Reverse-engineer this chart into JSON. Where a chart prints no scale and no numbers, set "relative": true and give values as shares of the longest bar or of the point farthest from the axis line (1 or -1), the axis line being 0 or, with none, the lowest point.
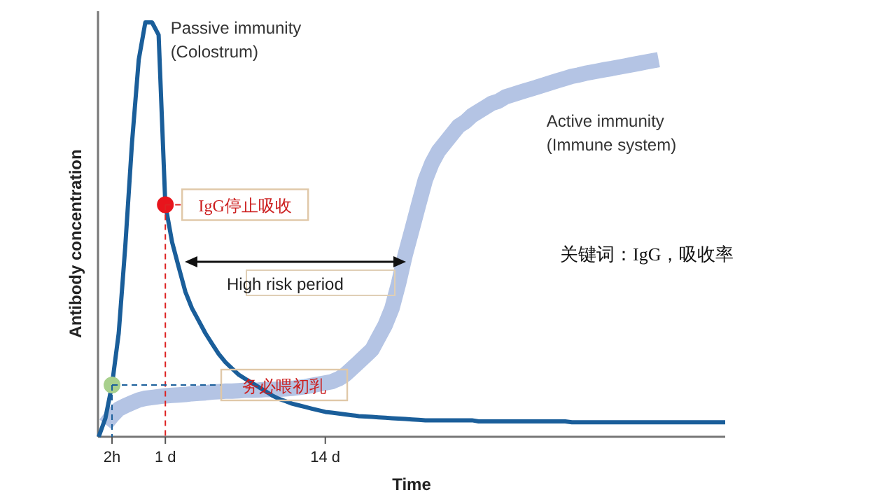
{
  "chart_data": {
    "type": "line",
    "relative": true,
    "xlabel": "Time",
    "ylabel": "Antibody concentration",
    "categories": [
      null,
      null,
      "2h",
      null,
      null,
      null,
      null,
      null,
      null,
      null,
      "1 d",
      null,
      null,
      null,
      null,
      null,
      null,
      null,
      null,
      null,
      null,
      null,
      null,
      null,
      null,
      null,
      null,
      null,
      null,
      null,
      null,
      null,
      null,
      null,
      "14 d",
      null,
      null,
      null,
      null,
      null,
      null,
      null,
      null,
      null,
      null,
      null,
      null,
      null,
      null,
      null,
      null,
      null,
      null,
      null,
      null,
      null,
      null,
      null,
      null,
      null,
      null,
      null,
      null,
      null,
      null,
      null,
      null,
      null,
      null,
      null,
      null,
      null,
      null,
      null,
      null,
      null,
      null,
      null,
      null,
      null,
      null,
      null,
      null,
      null,
      null,
      null,
      null,
      null,
      null,
      null,
      null,
      null,
      null,
      null,
      null
    ],
    "tick_labels": "x",
    "grid": false,
    "legend": false,
    "series": [
      {
        "name": "Passive immunity\n(Colostrum)",
        "type": "line",
        "color": "#1a5e9a",
        "values": [
          0,
          0.045,
          0.125,
          0.25,
          0.46,
          0.71,
          0.91,
          1.0,
          1.0,
          0.97,
          0.56,
          0.47,
          0.41,
          0.35,
          0.31,
          0.28,
          0.25,
          0.225,
          0.2,
          0.18,
          0.165,
          0.15,
          0.14,
          0.13,
          0.12,
          0.11,
          0.1,
          0.092,
          0.086,
          0.08,
          0.076,
          0.072,
          0.068,
          0.064,
          0.06,
          0.058,
          0.056,
          0.054,
          0.052,
          0.05,
          0.049,
          0.048,
          0.047,
          0.046,
          0.045,
          0.044,
          0.043,
          0.042,
          0.041,
          0.04,
          0.04,
          0.04,
          0.04,
          0.04,
          0.04,
          0.04,
          0.04,
          0.037,
          0.037,
          0.037,
          0.037,
          0.037,
          0.037,
          0.037,
          0.037,
          0.037,
          0.037,
          0.037,
          0.037,
          0.037,
          0.037,
          0.035,
          0.035,
          0.035,
          0.035,
          0.035,
          0.035,
          0.035,
          0.035,
          0.035,
          0.035,
          0.035,
          0.035,
          0.035,
          0.035,
          0.035,
          0.035,
          0.035,
          0.035,
          0.035,
          0.035,
          0.035,
          0.035,
          0.035,
          0.035
        ]
      },
      {
        "name": "Active immunity\n(Immune system)",
        "type": "line",
        "color": "#b4c4e4",
        "values": [
          null,
          0.03,
          0.05,
          0.067,
          0.075,
          0.082,
          0.089,
          0.093,
          0.095,
          0.097,
          0.099,
          0.1,
          0.101,
          0.102,
          0.104,
          0.105,
          0.106,
          0.108,
          0.109,
          0.11,
          0.11,
          0.111,
          0.112,
          0.112,
          0.113,
          0.114,
          0.114,
          0.115,
          0.116,
          0.117,
          0.119,
          0.121,
          0.124,
          0.127,
          0.13,
          0.133,
          0.14,
          0.15,
          0.165,
          0.18,
          0.195,
          0.21,
          0.24,
          0.27,
          0.31,
          0.37,
          0.44,
          0.5,
          0.56,
          0.62,
          0.66,
          0.69,
          0.71,
          0.73,
          0.75,
          0.76,
          0.775,
          0.785,
          0.795,
          0.805,
          0.81,
          0.82,
          0.825,
          0.83,
          0.835,
          0.84,
          0.845,
          0.85,
          0.855,
          0.86,
          0.865,
          0.87,
          0.873,
          0.877,
          0.88,
          0.883,
          0.886,
          0.889,
          0.892,
          0.895,
          0.898,
          0.901,
          0.904,
          0.907,
          0.91,
          null,
          null,
          null,
          null,
          null,
          null,
          null,
          null,
          null,
          null
        ]
      },
      {
        "type": "scatter",
        "marker": "circle",
        "color": "#e8141c",
        "x": [
          "1 d"
        ],
        "values": [
          0.56
        ]
      },
      {
        "type": "scatter",
        "marker": "circle",
        "color": "#a8d08d",
        "x": [
          "2h"
        ],
        "values": [
          0.125
        ]
      }
    ],
    "annotations": [
      {
        "text": "IgG停止吸收",
        "x": "1 d",
        "y": 0.56
      },
      {
        "text": "务必喂初乳",
        "x": "2h",
        "y": 0.125
      },
      "High risk period",
      "关键词：IgG，吸收率"
    ]
  }
}
